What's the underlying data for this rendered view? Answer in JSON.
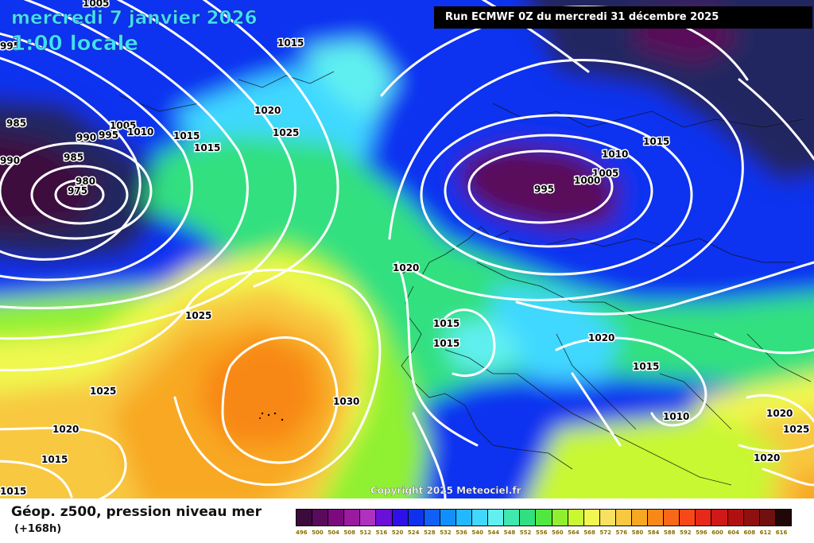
{
  "header": {
    "date_line": "mercredi 7 janvier 2026",
    "time_line": "1:00 locale",
    "run_info": "Run ECMWF 0Z du mercredi 31 décembre 2025"
  },
  "copyright": "Copyright 2025 Meteociel.fr",
  "legend": {
    "title": "Géop. z500, pression niveau mer",
    "subtitle": "(+168h)",
    "bins": [
      {
        "label": "496",
        "color": "#3c0a3c"
      },
      {
        "label": "500",
        "color": "#5a0a5a"
      },
      {
        "label": "504",
        "color": "#7d0a7d"
      },
      {
        "label": "508",
        "color": "#9a1aa0"
      },
      {
        "label": "512",
        "color": "#b030c0"
      },
      {
        "label": "516",
        "color": "#6a10d8"
      },
      {
        "label": "520",
        "color": "#3010e8"
      },
      {
        "label": "524",
        "color": "#1030f0"
      },
      {
        "label": "528",
        "color": "#1060f8"
      },
      {
        "label": "532",
        "color": "#1090ff"
      },
      {
        "label": "536",
        "color": "#20b8ff"
      },
      {
        "label": "540",
        "color": "#40d8ff"
      },
      {
        "label": "544",
        "color": "#60f0f0"
      },
      {
        "label": "548",
        "color": "#40e8b0"
      },
      {
        "label": "552",
        "color": "#30e080"
      },
      {
        "label": "556",
        "color": "#50e840"
      },
      {
        "label": "560",
        "color": "#90f030"
      },
      {
        "label": "564",
        "color": "#c8f830"
      },
      {
        "label": "568",
        "color": "#f0f850"
      },
      {
        "label": "572",
        "color": "#f8e060"
      },
      {
        "label": "576",
        "color": "#f8c840"
      },
      {
        "label": "580",
        "color": "#f8a820"
      },
      {
        "label": "584",
        "color": "#f88818"
      },
      {
        "label": "588",
        "color": "#f86818"
      },
      {
        "label": "592",
        "color": "#f84818"
      },
      {
        "label": "596",
        "color": "#e82818"
      },
      {
        "label": "600",
        "color": "#d01818"
      },
      {
        "label": "604",
        "color": "#b01010"
      },
      {
        "label": "608",
        "color": "#901010"
      },
      {
        "label": "612",
        "color": "#701010"
      },
      {
        "label": "616",
        "color": "#200808"
      }
    ]
  },
  "isobar_labels": [
    {
      "text": "1005",
      "id": "l1005a"
    },
    {
      "text": "995",
      "id": "l995a"
    },
    {
      "text": "1015",
      "id": "l1015a"
    },
    {
      "text": "1020",
      "id": "l1020a"
    },
    {
      "text": "1025",
      "id": "l1025a"
    },
    {
      "text": "985",
      "id": "l985a"
    },
    {
      "text": "990",
      "id": "l990a"
    },
    {
      "text": "995",
      "id": "l995b"
    },
    {
      "text": "1005",
      "id": "l1005b"
    },
    {
      "text": "1010",
      "id": "l1010a"
    },
    {
      "text": "1015",
      "id": "l1015b"
    },
    {
      "text": "1015",
      "id": "l1015c"
    },
    {
      "text": "985",
      "id": "l985b"
    },
    {
      "text": "980",
      "id": "l980a"
    },
    {
      "text": "975",
      "id": "l975a"
    },
    {
      "text": "990",
      "id": "l990b"
    },
    {
      "text": "1010",
      "id": "l1010b"
    },
    {
      "text": "1015",
      "id": "l1015d"
    },
    {
      "text": "1005",
      "id": "l1005c"
    },
    {
      "text": "1000",
      "id": "l1000a"
    },
    {
      "text": "995",
      "id": "l995c"
    },
    {
      "text": "1020",
      "id": "l1020b"
    },
    {
      "text": "1025",
      "id": "l1025b"
    },
    {
      "text": "1015",
      "id": "l1015e"
    },
    {
      "text": "1015",
      "id": "l1015f"
    },
    {
      "text": "1020",
      "id": "l1020c"
    },
    {
      "text": "1015",
      "id": "l1015g"
    },
    {
      "text": "1010",
      "id": "l1010c"
    },
    {
      "text": "1030",
      "id": "l1030a"
    },
    {
      "text": "1025",
      "id": "l1025c"
    },
    {
      "text": "1020",
      "id": "l1020d"
    },
    {
      "text": "1015",
      "id": "l1015h"
    },
    {
      "text": "1015",
      "id": "l1015i"
    },
    {
      "text": "1020",
      "id": "l1020e"
    },
    {
      "text": "1025",
      "id": "l1025d"
    },
    {
      "text": "1020",
      "id": "l1020f"
    }
  ]
}
